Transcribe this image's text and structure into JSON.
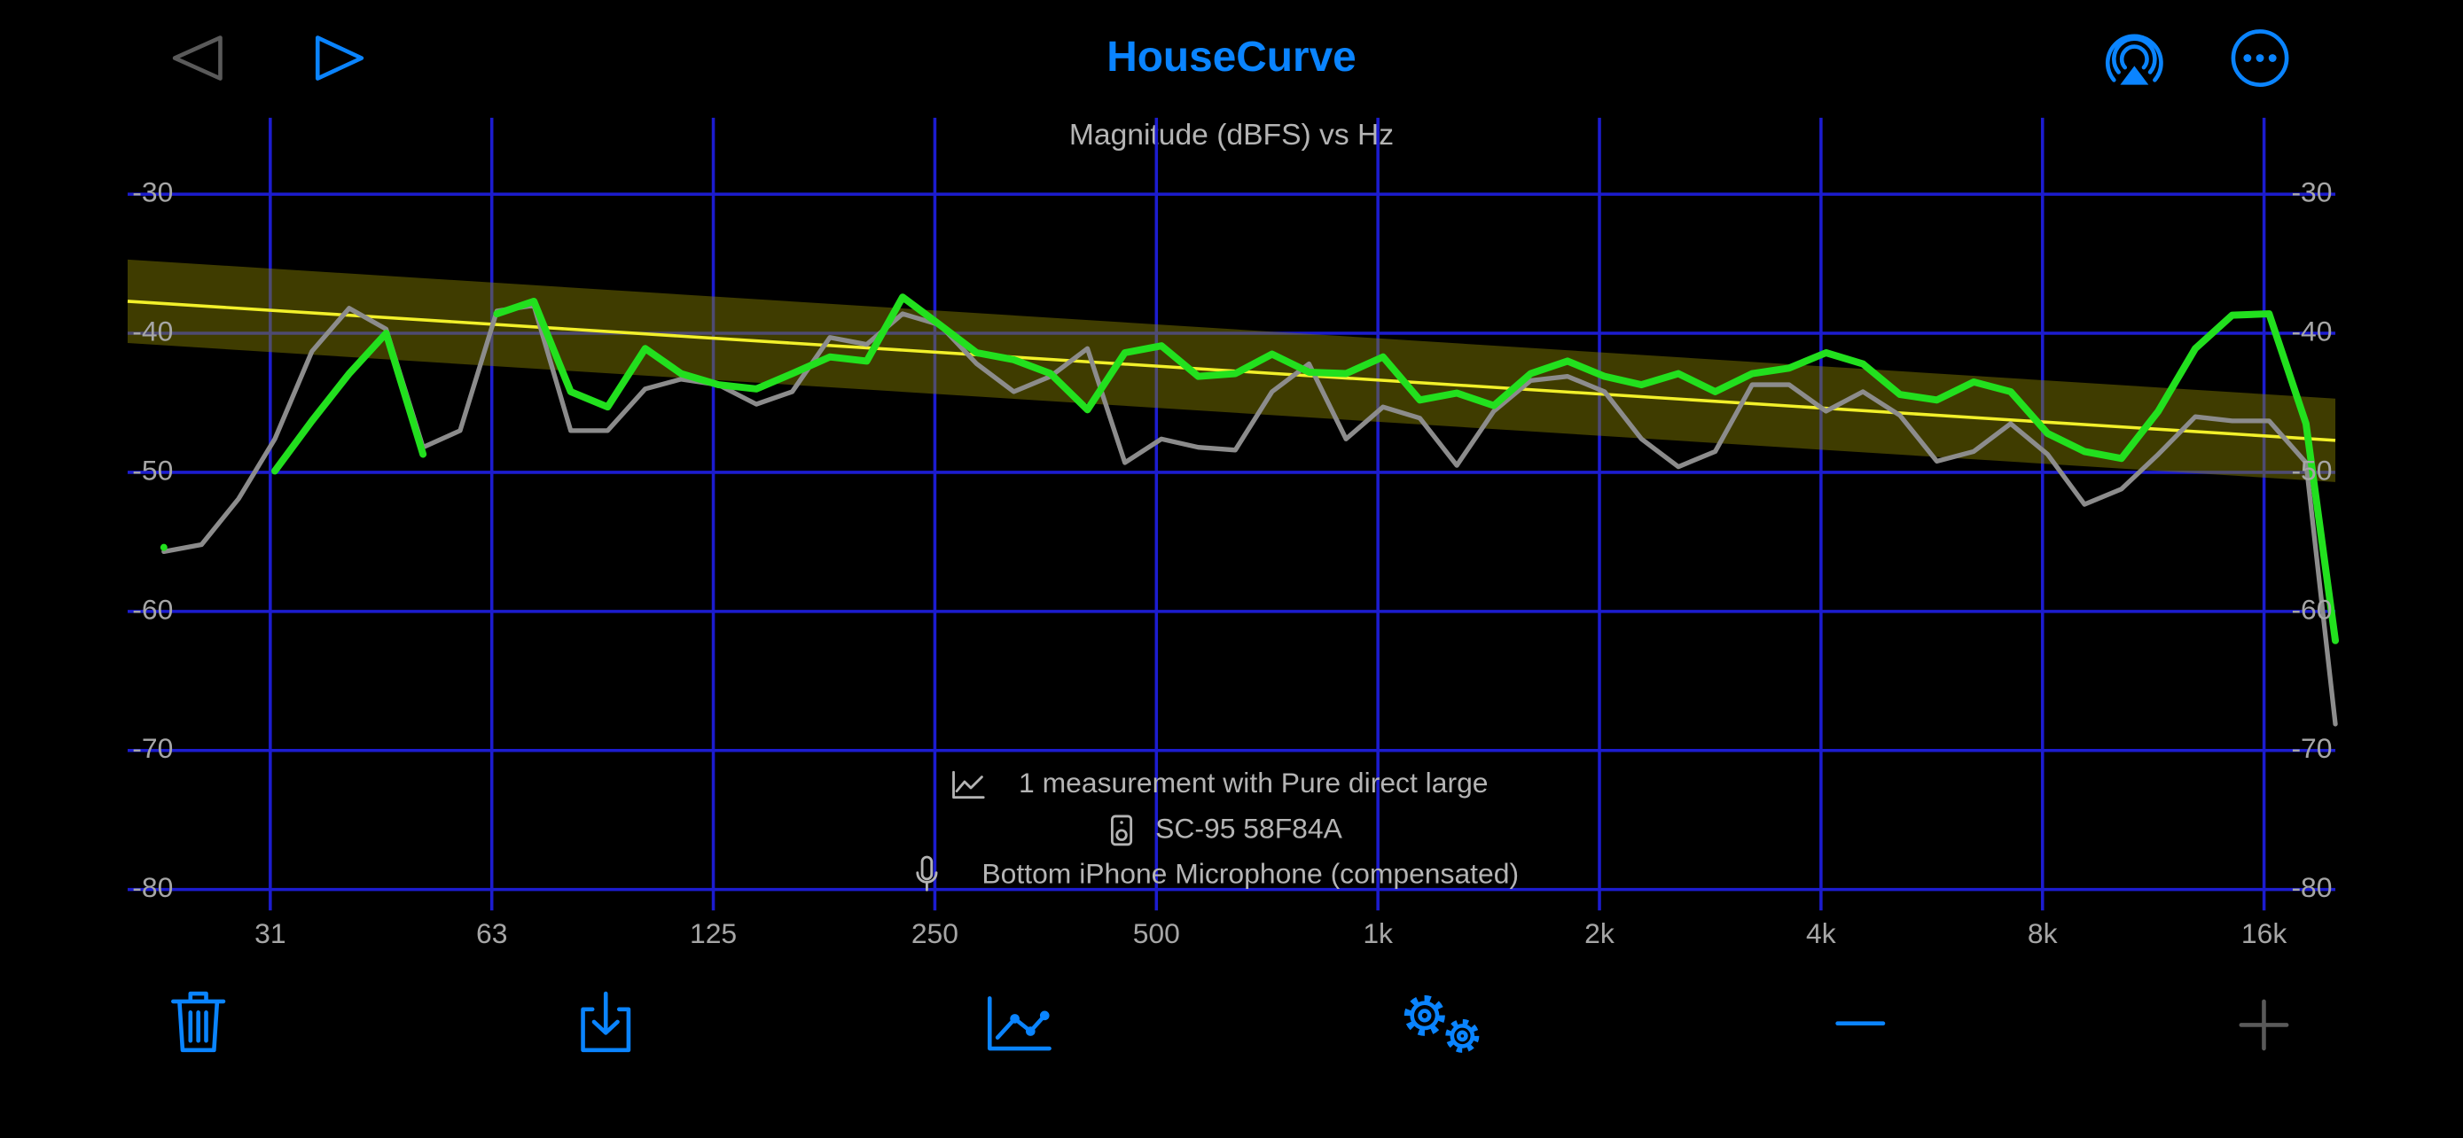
{
  "header": {
    "title": "HouseCurve"
  },
  "chart_data": {
    "type": "line",
    "title": "Magnitude (dBFS) vs Hz",
    "log_x": true,
    "grid": true,
    "grid_color": "#1c1ccf",
    "xlim": [
      20,
      20000
    ],
    "xticks": [
      {
        "value": 31.25,
        "label": "31"
      },
      {
        "value": 62.5,
        "label": "63"
      },
      125,
      250,
      500,
      {
        "value": 1000,
        "label": "1k"
      },
      {
        "value": 2000,
        "label": "2k"
      },
      {
        "value": 4000,
        "label": "4k"
      },
      {
        "value": 8000,
        "label": "8k"
      },
      {
        "value": 16000,
        "label": "16k"
      }
    ],
    "ylim": [
      -81.5,
      -24.5
    ],
    "yticks": [
      -30,
      -40,
      -50,
      -60,
      -70,
      -80
    ],
    "x": [
      20,
      22.4,
      25.2,
      28.3,
      31.7,
      35.6,
      40,
      44.9,
      50.4,
      56.6,
      63.5,
      71.3,
      80,
      89.8,
      101,
      113,
      127,
      143,
      160,
      180,
      202,
      226,
      254,
      285,
      320,
      359,
      403,
      453,
      508,
      570,
      640,
      718,
      806,
      905,
      1016,
      1140,
      1280,
      1437,
      1613,
      1810,
      2032,
      2281,
      2560,
      2873,
      3225,
      3620,
      4064,
      4561,
      5120,
      5747,
      6451,
      7241,
      8127,
      9123,
      10240,
      11494,
      12902,
      14482,
      16255,
      18245,
      20000
    ],
    "series": [
      {
        "color": "#8c8c8c",
        "values": [
          null,
          -55.7,
          -55.2,
          -51.9,
          -47.6,
          -41.3,
          -38.2,
          -39.7,
          -48.2,
          -47.0,
          -38.4,
          -38.0,
          -47.0,
          -47.0,
          -44.0,
          -43.3,
          -43.7,
          -45.1,
          -44.2,
          -40.3,
          -40.8,
          -38.6,
          -39.4,
          -42.2,
          -44.2,
          -43.1,
          -41.1,
          -49.3,
          -47.6,
          -48.2,
          -48.4,
          -44.2,
          -42.2,
          -47.6,
          -45.3,
          -46.1,
          -49.5,
          -45.6,
          -43.4,
          -43.1,
          -44.2,
          -47.6,
          -49.6,
          -48.5,
          -43.7,
          -43.7,
          -45.6,
          -44.2,
          -45.9,
          -49.2,
          -48.5,
          -46.5,
          -48.7,
          -52.3,
          -51.2,
          -48.7,
          -46.0,
          -46.3,
          -46.3,
          -49.3,
          -68.1
        ]
      },
      {
        "color": "#22e01e",
        "values": [
          null,
          -55.4,
          null,
          null,
          -49.9,
          -46.3,
          -42.9,
          -40.0,
          -48.7,
          null,
          -38.6,
          -37.7,
          -44.2,
          -45.3,
          -41.1,
          -42.9,
          -43.7,
          -44.0,
          -42.9,
          -41.7,
          -42.0,
          -37.4,
          -39.4,
          -41.4,
          -41.9,
          -42.9,
          -45.5,
          -41.4,
          -40.9,
          -43.1,
          -42.9,
          -41.5,
          -42.8,
          -42.9,
          -41.7,
          -44.8,
          -44.3,
          -45.2,
          -42.9,
          -42.0,
          -43.1,
          -43.7,
          -42.9,
          -44.2,
          -42.9,
          -42.5,
          -41.4,
          -42.2,
          -44.4,
          -44.8,
          -43.5,
          -44.2,
          -47.2,
          -48.5,
          -49.0,
          -45.6,
          -41.1,
          -38.7,
          -38.6,
          -46.5,
          -62.1
        ]
      }
    ],
    "target": {
      "color": "#f2f02a",
      "x": [
        20,
        20000
      ],
      "values": [
        -37.7,
        -47.7
      ]
    },
    "band": {
      "color": "#8c8400",
      "x": [
        20,
        20000
      ],
      "upper": [
        -34.7,
        -44.7
      ],
      "lower": [
        -40.7,
        -50.7
      ]
    },
    "annotations": [
      "1 measurement with Pure direct large",
      "SC-95 58F84A",
      "Bottom iPhone Microphone (compensated)"
    ]
  }
}
